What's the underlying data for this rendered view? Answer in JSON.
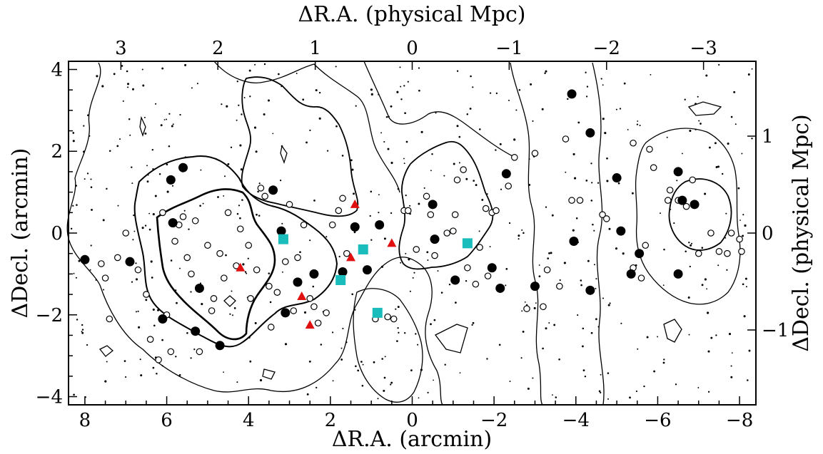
{
  "chart_data": {
    "type": "scatter",
    "title": "",
    "xlabel": "ΔR.A. (arcmin)",
    "ylabel": "ΔDecl. (arcmin)",
    "top_xlabel": "ΔR.A. (physical Mpc)",
    "right_ylabel": "ΔDecl. (physical Mpc)",
    "xlim": [
      8.4,
      -8.4
    ],
    "ylim": [
      -4.2,
      4.2
    ],
    "x_ticks": [
      8,
      6,
      4,
      2,
      0,
      -2,
      -4,
      -6,
      -8
    ],
    "x_tick_labels": [
      "8",
      "6",
      "4",
      "2",
      "0",
      "−2",
      "−4",
      "−6",
      "−8"
    ],
    "y_ticks": [
      -4,
      -2,
      0,
      2,
      4
    ],
    "y_tick_labels": [
      "−4",
      "−2",
      "0",
      "2",
      "4"
    ],
    "top_ticks_arcmin": [
      7.12,
      4.75,
      2.37,
      0,
      -2.37,
      -4.75,
      -7.12
    ],
    "top_tick_labels": [
      "3",
      "2",
      "1",
      "0",
      "−1",
      "−2",
      "−3"
    ],
    "right_ticks_arcmin": [
      2.37,
      0,
      -2.37
    ],
    "right_tick_labels": [
      "1",
      "0",
      "−1"
    ],
    "grid": false,
    "legend": "none",
    "colors": {
      "filled_circle": "#000000",
      "open_circle": "#ffffff",
      "square": "#1abcbc",
      "triangle": "#e01010"
    },
    "series": [
      {
        "marker": "filled-circle",
        "points": [
          [
            8.0,
            -0.65
          ],
          [
            6.9,
            -0.7
          ],
          [
            6.1,
            -2.1
          ],
          [
            5.9,
            1.3
          ],
          [
            5.85,
            0.25
          ],
          [
            5.6,
            1.6
          ],
          [
            5.3,
            -2.4
          ],
          [
            5.2,
            -1.35
          ],
          [
            4.7,
            -2.75
          ],
          [
            3.4,
            1.05
          ],
          [
            3.2,
            0.05
          ],
          [
            3.1,
            -1.95
          ],
          [
            2.8,
            -1.2
          ],
          [
            2.4,
            -1.0
          ],
          [
            1.7,
            -0.95
          ],
          [
            1.4,
            0.15
          ],
          [
            1.1,
            -0.9
          ],
          [
            0.8,
            0.2
          ],
          [
            -0.5,
            0.7
          ],
          [
            -0.55,
            -0.15
          ],
          [
            -1.05,
            -1.15
          ],
          [
            -1.95,
            -0.85
          ],
          [
            -2.15,
            -1.35
          ],
          [
            -2.3,
            1.45
          ],
          [
            -3.0,
            -1.3
          ],
          [
            -3.9,
            3.4
          ],
          [
            -3.95,
            -0.2
          ],
          [
            -4.35,
            2.45
          ],
          [
            -4.35,
            -1.4
          ],
          [
            -5.0,
            1.35
          ],
          [
            -5.1,
            0.05
          ],
          [
            -5.35,
            -1.0
          ],
          [
            -5.55,
            -0.5
          ],
          [
            -6.5,
            1.5
          ],
          [
            -6.5,
            -1.0
          ],
          [
            -6.6,
            0.8
          ],
          [
            -6.9,
            0.7
          ]
        ]
      },
      {
        "marker": "open-circle",
        "points": [
          [
            7.6,
            -0.75
          ],
          [
            7.5,
            -1.1
          ],
          [
            7.4,
            -2.1
          ],
          [
            7.2,
            -0.6
          ],
          [
            7.0,
            0.0
          ],
          [
            6.7,
            -0.9
          ],
          [
            6.5,
            -1.5
          ],
          [
            6.4,
            -2.6
          ],
          [
            6.2,
            -3.1
          ],
          [
            6.1,
            0.5
          ],
          [
            6.0,
            -2.0
          ],
          [
            5.9,
            -2.9
          ],
          [
            5.8,
            -0.2
          ],
          [
            5.7,
            0.2
          ],
          [
            5.6,
            0.4
          ],
          [
            5.5,
            -0.6
          ],
          [
            5.4,
            -1.0
          ],
          [
            5.3,
            0.3
          ],
          [
            5.2,
            -2.9
          ],
          [
            5.0,
            -0.3
          ],
          [
            4.9,
            -1.9
          ],
          [
            4.85,
            -1.6
          ],
          [
            4.7,
            -0.5
          ],
          [
            4.6,
            -1.1
          ],
          [
            4.5,
            0.5
          ],
          [
            4.3,
            -0.8
          ],
          [
            4.2,
            0.1
          ],
          [
            4.0,
            -0.3
          ],
          [
            3.95,
            -1.6
          ],
          [
            3.8,
            -0.9
          ],
          [
            3.7,
            1.1
          ],
          [
            3.6,
            0.9
          ],
          [
            3.5,
            -1.3
          ],
          [
            3.45,
            -2.3
          ],
          [
            3.3,
            -1.45
          ],
          [
            3.1,
            -0.7
          ],
          [
            3.0,
            0.7
          ],
          [
            2.9,
            -1.9
          ],
          [
            2.8,
            -0.6
          ],
          [
            2.65,
            0.2
          ],
          [
            2.5,
            -1.6
          ],
          [
            2.4,
            -1.8
          ],
          [
            2.3,
            -2.2
          ],
          [
            2.1,
            -1.95
          ],
          [
            1.95,
            0.2
          ],
          [
            1.8,
            0.55
          ],
          [
            1.7,
            0.85
          ],
          [
            1.6,
            -0.5
          ],
          [
            0.9,
            -2.1
          ],
          [
            0.6,
            -2.05
          ],
          [
            0.45,
            -2.1
          ],
          [
            0.2,
            0.55
          ],
          [
            0.1,
            0.55
          ],
          [
            -0.1,
            -0.4
          ],
          [
            -0.35,
            0.9
          ],
          [
            -0.45,
            0.45
          ],
          [
            -0.55,
            -0.55
          ],
          [
            -0.85,
            0.0
          ],
          [
            -1.0,
            0.05
          ],
          [
            -1.05,
            0.45
          ],
          [
            -1.1,
            1.3
          ],
          [
            -1.25,
            1.55
          ],
          [
            -1.35,
            -0.85
          ],
          [
            -1.55,
            -1.25
          ],
          [
            -1.65,
            -0.35
          ],
          [
            -1.8,
            0.6
          ],
          [
            -1.85,
            -1.05
          ],
          [
            -1.95,
            0.5
          ],
          [
            -2.05,
            0.55
          ],
          [
            -2.35,
            1.15
          ],
          [
            -2.5,
            1.85
          ],
          [
            -2.8,
            -1.85
          ],
          [
            -3.0,
            1.95
          ],
          [
            -3.2,
            -1.8
          ],
          [
            -3.3,
            -0.9
          ],
          [
            -3.6,
            -1.3
          ],
          [
            -3.75,
            2.3
          ],
          [
            -3.9,
            0.8
          ],
          [
            -4.1,
            0.8
          ],
          [
            -4.65,
            0.45
          ],
          [
            -4.75,
            0.35
          ],
          [
            -5.4,
            -0.85
          ],
          [
            -5.6,
            -1.1
          ],
          [
            -5.4,
            2.2
          ],
          [
            -5.7,
            -0.3
          ],
          [
            -5.8,
            2.05
          ],
          [
            -5.9,
            1.6
          ],
          [
            -6.25,
            0.8
          ],
          [
            -6.3,
            1.05
          ],
          [
            -6.5,
            0.8
          ],
          [
            -6.7,
            0.65
          ],
          [
            -6.85,
            1.3
          ],
          [
            -7.3,
            0.0
          ],
          [
            -7.5,
            -0.45
          ],
          [
            -7.7,
            -0.5
          ],
          [
            -7.8,
            0.0
          ],
          [
            -8.0,
            -0.15
          ],
          [
            -8.05,
            -0.45
          ],
          [
            -7.0,
            -0.5
          ]
        ]
      },
      {
        "marker": "square",
        "points": [
          [
            3.15,
            -0.15
          ],
          [
            1.75,
            -1.15
          ],
          [
            1.2,
            -0.4
          ],
          [
            0.85,
            -1.95
          ],
          [
            -1.35,
            -0.25
          ]
        ]
      },
      {
        "marker": "triangle",
        "points": [
          [
            4.2,
            -0.85
          ],
          [
            2.7,
            -1.55
          ],
          [
            2.5,
            -2.25
          ],
          [
            1.5,
            -0.6
          ],
          [
            1.4,
            0.7
          ],
          [
            0.5,
            -0.25
          ]
        ]
      }
    ]
  }
}
